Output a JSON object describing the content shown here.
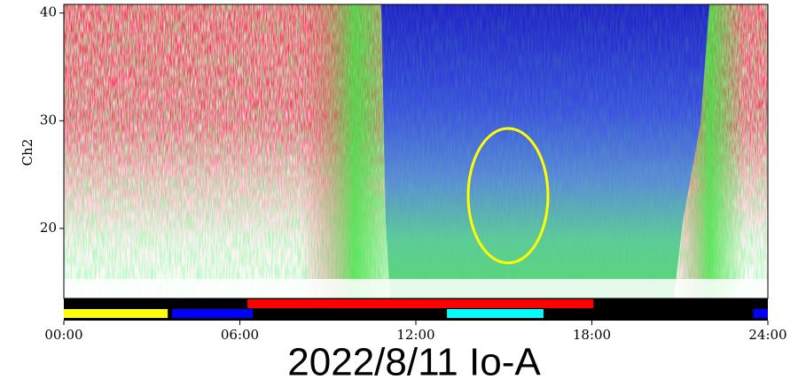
{
  "chart_data": {
    "type": "spectrogram",
    "title": "2022/8/11 Io-A",
    "ylabel": "Ch2",
    "xlim": [
      0,
      24
    ],
    "xticks": [
      {
        "value": 0,
        "label": "00:00"
      },
      {
        "value": 6,
        "label": "06:00"
      },
      {
        "value": 12,
        "label": "12:00"
      },
      {
        "value": 18,
        "label": "18:00"
      },
      {
        "value": 24,
        "label": "24:00"
      }
    ],
    "ylim": [
      13.5,
      40.8
    ],
    "yticks": [
      20,
      30,
      40
    ],
    "upper_bar_segments": [
      {
        "start": 6.26,
        "end": 18.05,
        "color": "#ff0000"
      }
    ],
    "lower_bar_segments": [
      {
        "start": 0,
        "end": 3.54,
        "color": "#ffff00"
      },
      {
        "start": 3.69,
        "end": 6.44,
        "color": "#0000ff"
      },
      {
        "start": 13.06,
        "end": 16.35,
        "color": "#00ffff"
      },
      {
        "start": 23.5,
        "end": 24,
        "color": "#0000ff"
      }
    ]
  }
}
